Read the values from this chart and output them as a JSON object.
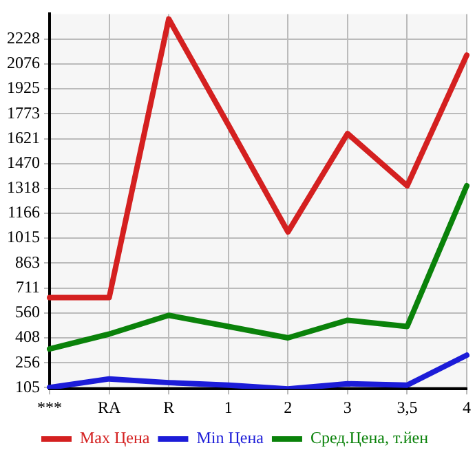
{
  "chart_data": {
    "type": "line",
    "categories": [
      "***",
      "RA",
      "R",
      "1",
      "2",
      "3",
      "3,5",
      "4"
    ],
    "series": [
      {
        "name": "Max Цена",
        "color": "#d42020",
        "values": [
          653,
          653,
          2350,
          1705,
          1053,
          1652,
          1334,
          2130
        ]
      },
      {
        "name": "Min Цена",
        "color": "#1c1cd8",
        "values": [
          105,
          158,
          135,
          120,
          97,
          128,
          120,
          302
        ]
      },
      {
        "name": "Сред.Цена, т.йен",
        "color": "#0a820a",
        "values": [
          340,
          431,
          545,
          477,
          408,
          515,
          477,
          1334
        ]
      }
    ],
    "ylim": [
      97,
      2380
    ],
    "yticks": [
      105,
      256,
      408,
      560,
      711,
      863,
      1015,
      1166,
      1318,
      1470,
      1621,
      1773,
      1925,
      2076,
      2228
    ],
    "grid": true,
    "legend": "bottom",
    "marker": "none",
    "line_style": "solid"
  }
}
